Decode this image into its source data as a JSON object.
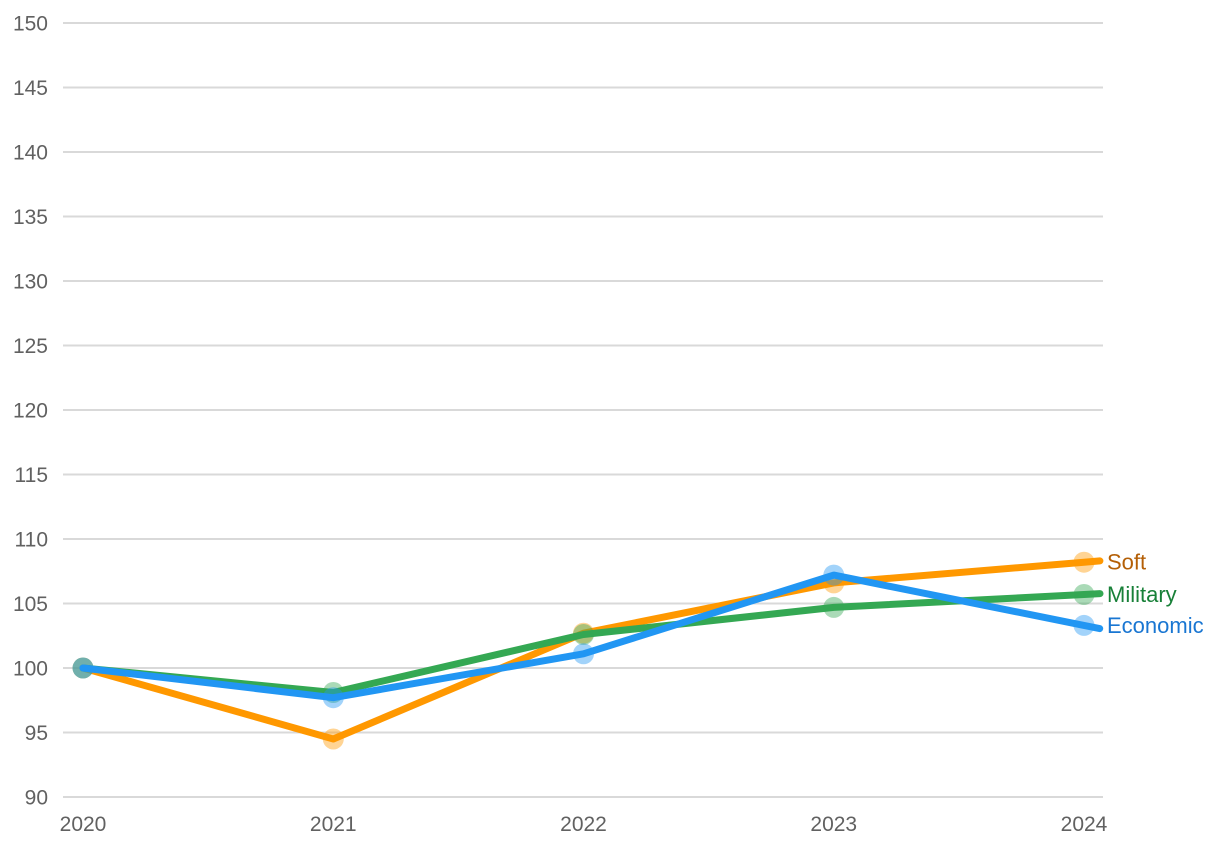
{
  "chart_data": {
    "type": "line",
    "title": "",
    "xlabel": "",
    "ylabel": "",
    "x": [
      "2020",
      "2021",
      "2022",
      "2023",
      "2024"
    ],
    "series": [
      {
        "name": "Soft",
        "color": "#ff9800",
        "label_color": "#b45f06",
        "values": [
          100,
          94.5,
          102.7,
          106.6,
          108.2
        ]
      },
      {
        "name": "Military",
        "color": "#34a853",
        "label_color": "#188038",
        "values": [
          100,
          98.1,
          102.6,
          104.7,
          105.7
        ]
      },
      {
        "name": "Economic",
        "color": "#2196f3",
        "label_color": "#1976d2",
        "values": [
          100,
          97.7,
          101.1,
          107.2,
          103.3
        ]
      }
    ],
    "yticks": [
      90,
      95,
      100,
      105,
      110,
      115,
      120,
      125,
      130,
      135,
      140,
      145,
      150
    ],
    "ylim": [
      90,
      150
    ],
    "grid": true,
    "legend_position": "end-of-line",
    "axis_text_color": "#616161",
    "gridline_color": "#d9d9d9",
    "background": "#ffffff"
  }
}
